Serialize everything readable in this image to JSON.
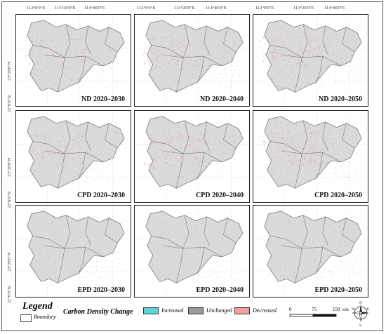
{
  "colors": {
    "increased": "#5fd3d8",
    "unchanged": "#9a9a9a",
    "decreased": "#f2a0a0",
    "land": "#dadada",
    "boundary": "#7a7a7a"
  },
  "coords": {
    "lon": [
      "112°0'0\"E",
      "113°20'0\"E",
      "114°40'0\"E"
    ],
    "lat": [
      "23°20'0\"N",
      "22°0'0\"N"
    ]
  },
  "panels": [
    {
      "label": "ND 2020–2030",
      "intensity": 0.35
    },
    {
      "label": "ND 2020–2040",
      "intensity": 0.5
    },
    {
      "label": "ND 2020–2050",
      "intensity": 0.55
    },
    {
      "label": "CPD 2020–2030",
      "intensity": 0.45
    },
    {
      "label": "CPD 2020–2040",
      "intensity": 0.6
    },
    {
      "label": "CPD 2020–2050",
      "intensity": 0.75
    },
    {
      "label": "EPD 2020–2030",
      "intensity": 0.0
    },
    {
      "label": "EPD 2020–2040",
      "intensity": 0.0
    },
    {
      "label": "EPD 2020–2050",
      "intensity": 0.0
    }
  ],
  "legend": {
    "title": "Legend",
    "boundary_label": "Boundary",
    "carbon_title": "Carbon Density Change",
    "items": [
      {
        "label": "Increased",
        "color": "#5fd3d8"
      },
      {
        "label": "Unchanged",
        "color": "#9a9a9a"
      },
      {
        "label": "Decreased",
        "color": "#f2a0a0"
      }
    ]
  },
  "scale": {
    "ticks": [
      "0",
      "75",
      "150"
    ],
    "unit": "KM"
  },
  "compass": {
    "n": "N",
    "s": "S",
    "e": "E",
    "w": "W"
  }
}
